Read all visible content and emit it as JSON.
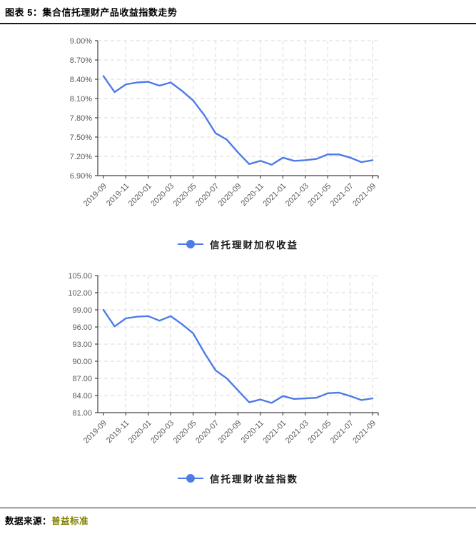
{
  "header": {
    "title": "图表 5：集合信托理财产品收益指数走势"
  },
  "footer": {
    "source_label": "数据来源：",
    "source_value": "普益标准"
  },
  "colors": {
    "line": "#4D7BE8",
    "grid": "#D8D8D8",
    "axis": "#404040",
    "tick_text": "#595959",
    "title_text": "#000000",
    "source_value_color": "#7F7F00"
  },
  "chart_data": [
    {
      "type": "line",
      "legend": "信托理财加权收益",
      "x": [
        "2019-09",
        "2019-10",
        "2019-11",
        "2019-12",
        "2020-01",
        "2020-02",
        "2020-03",
        "2020-04",
        "2020-05",
        "2020-06",
        "2020-07",
        "2020-08",
        "2020-09",
        "2020-10",
        "2020-11",
        "2020-12",
        "2021-01",
        "2021-02",
        "2021-03",
        "2021-04",
        "2021-05",
        "2021-06",
        "2021-07",
        "2021-08",
        "2021-09"
      ],
      "x_tick_every": 2,
      "x_tick_labels": [
        "2019-09",
        "2019-11",
        "2020-01",
        "2020-03",
        "2020-05",
        "2020-07",
        "2020-09",
        "2020-11",
        "2021-01",
        "2021-03",
        "2021-05",
        "2021-07",
        "2021-09"
      ],
      "values": [
        8.45,
        8.2,
        8.32,
        8.35,
        8.36,
        8.3,
        8.35,
        8.22,
        8.07,
        7.84,
        7.56,
        7.46,
        7.26,
        7.08,
        7.13,
        7.07,
        7.18,
        7.13,
        7.14,
        7.16,
        7.23,
        7.23,
        7.18,
        7.11,
        7.14
      ],
      "ylim": [
        6.9,
        9.0
      ],
      "yticks": [
        {
          "value": 6.9,
          "label": "6.90%"
        },
        {
          "value": 7.2,
          "label": "7.20%"
        },
        {
          "value": 7.5,
          "label": "7.50%"
        },
        {
          "value": 7.8,
          "label": "7.80%"
        },
        {
          "value": 8.1,
          "label": "8.10%"
        },
        {
          "value": 8.4,
          "label": "8.40%"
        },
        {
          "value": 8.7,
          "label": "8.70%"
        },
        {
          "value": 9.0,
          "label": "9.00%"
        }
      ],
      "grid": "dashed",
      "legend_position": "bottom"
    },
    {
      "type": "line",
      "legend": "信托理财收益指数",
      "x": [
        "2019-09",
        "2019-10",
        "2019-11",
        "2019-12",
        "2020-01",
        "2020-02",
        "2020-03",
        "2020-04",
        "2020-05",
        "2020-06",
        "2020-07",
        "2020-08",
        "2020-09",
        "2020-10",
        "2020-11",
        "2020-12",
        "2021-01",
        "2021-02",
        "2021-03",
        "2021-04",
        "2021-05",
        "2021-06",
        "2021-07",
        "2021-08",
        "2021-09"
      ],
      "x_tick_every": 2,
      "x_tick_labels": [
        "2019-09",
        "2019-11",
        "2020-01",
        "2020-03",
        "2020-05",
        "2020-07",
        "2020-09",
        "2020-11",
        "2021-01",
        "2021-03",
        "2021-05",
        "2021-07",
        "2021-09"
      ],
      "values": [
        99.0,
        96.1,
        97.5,
        97.8,
        97.9,
        97.1,
        97.9,
        96.5,
        94.9,
        91.5,
        88.4,
        87.0,
        84.9,
        82.8,
        83.3,
        82.7,
        83.9,
        83.4,
        83.5,
        83.6,
        84.4,
        84.5,
        83.9,
        83.2,
        83.5
      ],
      "ylim": [
        81,
        105
      ],
      "yticks": [
        {
          "value": 81,
          "label": "81.00"
        },
        {
          "value": 84,
          "label": "84.00"
        },
        {
          "value": 87,
          "label": "87.00"
        },
        {
          "value": 90,
          "label": "90.00"
        },
        {
          "value": 93,
          "label": "93.00"
        },
        {
          "value": 96,
          "label": "96.00"
        },
        {
          "value": 99,
          "label": "99.00"
        },
        {
          "value": 102,
          "label": "102.00"
        },
        {
          "value": 105,
          "label": "105.00"
        }
      ],
      "grid": "dashed",
      "legend_position": "bottom"
    }
  ]
}
